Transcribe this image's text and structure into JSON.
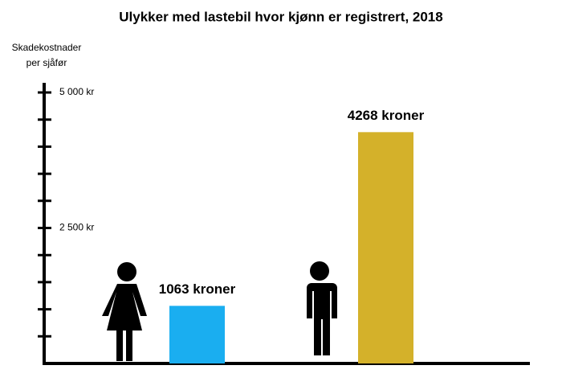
{
  "chart_data": {
    "type": "bar",
    "title": "Ulykker med lastebil hvor kjønn er registrert, 2018",
    "y_label": [
      "Skadekostnader",
      "per sjåfør"
    ],
    "categories": [
      null,
      null
    ],
    "values": [
      1063,
      4268
    ],
    "value_labels": [
      "1063 kroner",
      "4268 kroner"
    ],
    "colors": [
      "#1aaef0",
      "#d4b12a"
    ],
    "ylim": [
      0,
      5150
    ],
    "yticks": [
      {
        "value": 2500,
        "label": "2 500 kr"
      },
      {
        "value": 5000,
        "label": "5 000 kr"
      }
    ],
    "minor_yticks": [
      500,
      1000,
      1500,
      2000,
      3000,
      3500,
      4000,
      4500
    ]
  }
}
